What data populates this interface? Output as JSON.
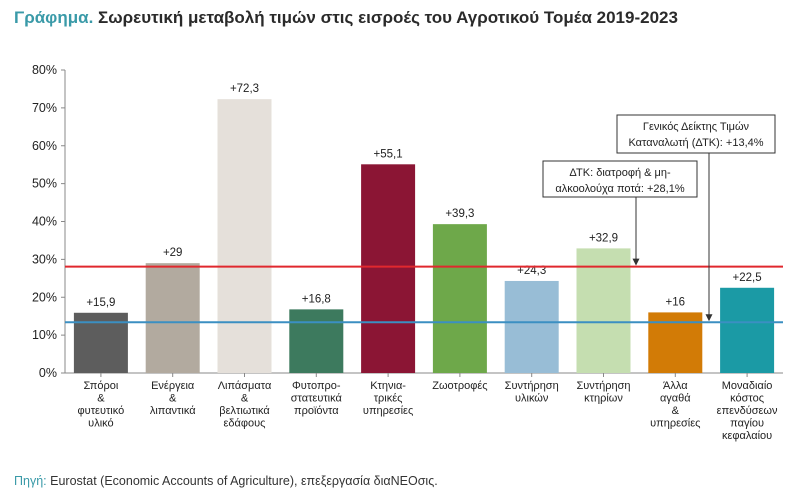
{
  "header": {
    "title_prefix": "Γράφημα.",
    "title_text": "Σωρευτική μεταβολή τιμών στις εισροές του Αγροτικού Τομέα 2019-2023"
  },
  "footer": {
    "source_prefix": "Πηγή:",
    "source_text": "Eurostat (Economic Accounts of Agriculture), επεξεργασία διαΝΕΟσις."
  },
  "chart_data": {
    "type": "bar",
    "title": "Σωρευτική μεταβολή τιμών στις εισροές του Αγροτικού Τομέα 2019-2023",
    "ylim": [
      0,
      80
    ],
    "yticks": [
      "0%",
      "10%",
      "20%",
      "30%",
      "40%",
      "50%",
      "60%",
      "70%",
      "80%"
    ],
    "grid": false,
    "categories": [
      [
        "Σπόροι",
        "&",
        "φυτευτικό",
        "υλικό"
      ],
      [
        "Ενέργεια",
        "&",
        "λιπαντικά"
      ],
      [
        "Λιπάσματα",
        "&",
        "βελτιωτικά",
        "εδάφους"
      ],
      [
        "Φυτοπρο-",
        "στατευτικά",
        "προϊόντα"
      ],
      [
        "Κτηνια-",
        "τρικές",
        "υπηρεσίες"
      ],
      [
        "Ζωοτροφές"
      ],
      [
        "Συντήρηση",
        "υλικών"
      ],
      [
        "Συντήρηση",
        "κτηρίων"
      ],
      [
        "Άλλα",
        "αγαθά",
        "&",
        "υπηρεσίες"
      ],
      [
        "Μοναδιαίο",
        "κόστος",
        "επενδύσεων",
        "παγίου",
        "κεφαλαίου"
      ]
    ],
    "values": [
      15.9,
      29,
      72.3,
      16.8,
      55.1,
      39.3,
      24.3,
      32.9,
      16,
      22.5
    ],
    "value_labels": [
      "+15,9",
      "+29",
      "+72,3",
      "+16,8",
      "+55,1",
      "+39,3",
      "+24,3",
      "+32,9",
      "+16",
      "+22,5"
    ],
    "colors": [
      "#5d5d5d",
      "#b2aa9f",
      "#e5e0da",
      "#3d7a5e",
      "#8b1534",
      "#6ea84a",
      "#98bdd6",
      "#c5deb0",
      "#d27b06",
      "#1b9aa5"
    ],
    "reference_lines": [
      {
        "value": 28.1,
        "color": "#e0282e",
        "label": [
          "ΔΤΚ: διατροφή & μη-",
          "αλκοολούχα ποτά: +28,1%"
        ]
      },
      {
        "value": 13.4,
        "color": "#3b8fc2",
        "label": [
          "Γενικός Δείκτης Τιμών",
          "Καταναλωτή (ΔΤΚ): +13,4%"
        ]
      }
    ]
  }
}
